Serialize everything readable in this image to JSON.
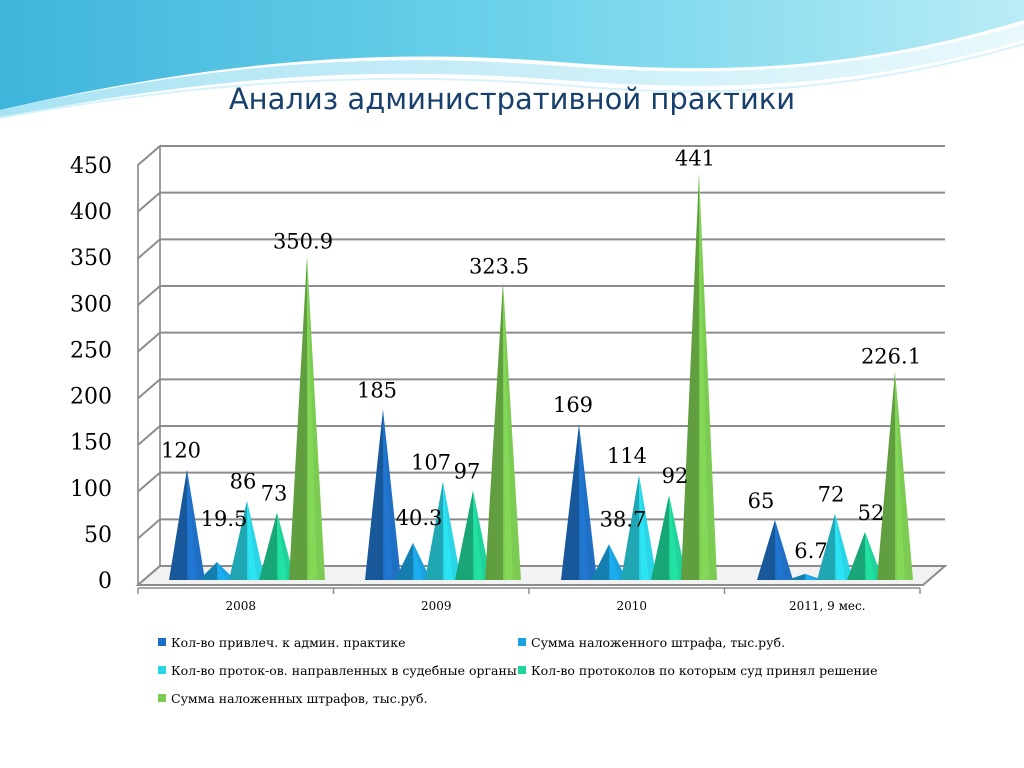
{
  "slide": {
    "title": "Анализ административной практики"
  },
  "chart_data": {
    "type": "bar",
    "style": "3d-cone",
    "categories": [
      "2008",
      "2009",
      "2010",
      "2011, 9 мес."
    ],
    "ylim": [
      0,
      450
    ],
    "yticks": [
      "0",
      "50",
      "100",
      "150",
      "200",
      "250",
      "300",
      "350",
      "400",
      "450"
    ],
    "grid": true,
    "legend_position": "bottom",
    "series": [
      {
        "name": "Кол-во привлеч. к админ. практике",
        "color": "#1f6fc4",
        "values": [
          120,
          185,
          169,
          65
        ],
        "labels": [
          "120",
          "185",
          "169",
          "65"
        ]
      },
      {
        "name": "Сумма наложенного штрафа, тыс.руб.",
        "color": "#1aa3e0",
        "values": [
          19.5,
          40.3,
          38.7,
          6.7
        ],
        "labels": [
          "19.5",
          "40.3",
          "38.7",
          "6.7"
        ]
      },
      {
        "name": "Кол-во проток-ов. направленных в судебные органы",
        "color": "#2ad6e6",
        "values": [
          86,
          107,
          114,
          72
        ],
        "labels": [
          "86",
          "107",
          "114",
          "72"
        ]
      },
      {
        "name": "Кол-во протоколов по которым суд принял решение",
        "color": "#1fd49a",
        "values": [
          73,
          97,
          92,
          52
        ],
        "labels": [
          "73",
          "97",
          "92",
          "52"
        ]
      },
      {
        "name": "Сумма наложенных штрафов, тыс.руб.",
        "color": "#7ccb52",
        "values": [
          350.9,
          323.5,
          441,
          226.1
        ],
        "labels": [
          "350.9",
          "323.5",
          "441",
          "226.1"
        ]
      }
    ]
  }
}
